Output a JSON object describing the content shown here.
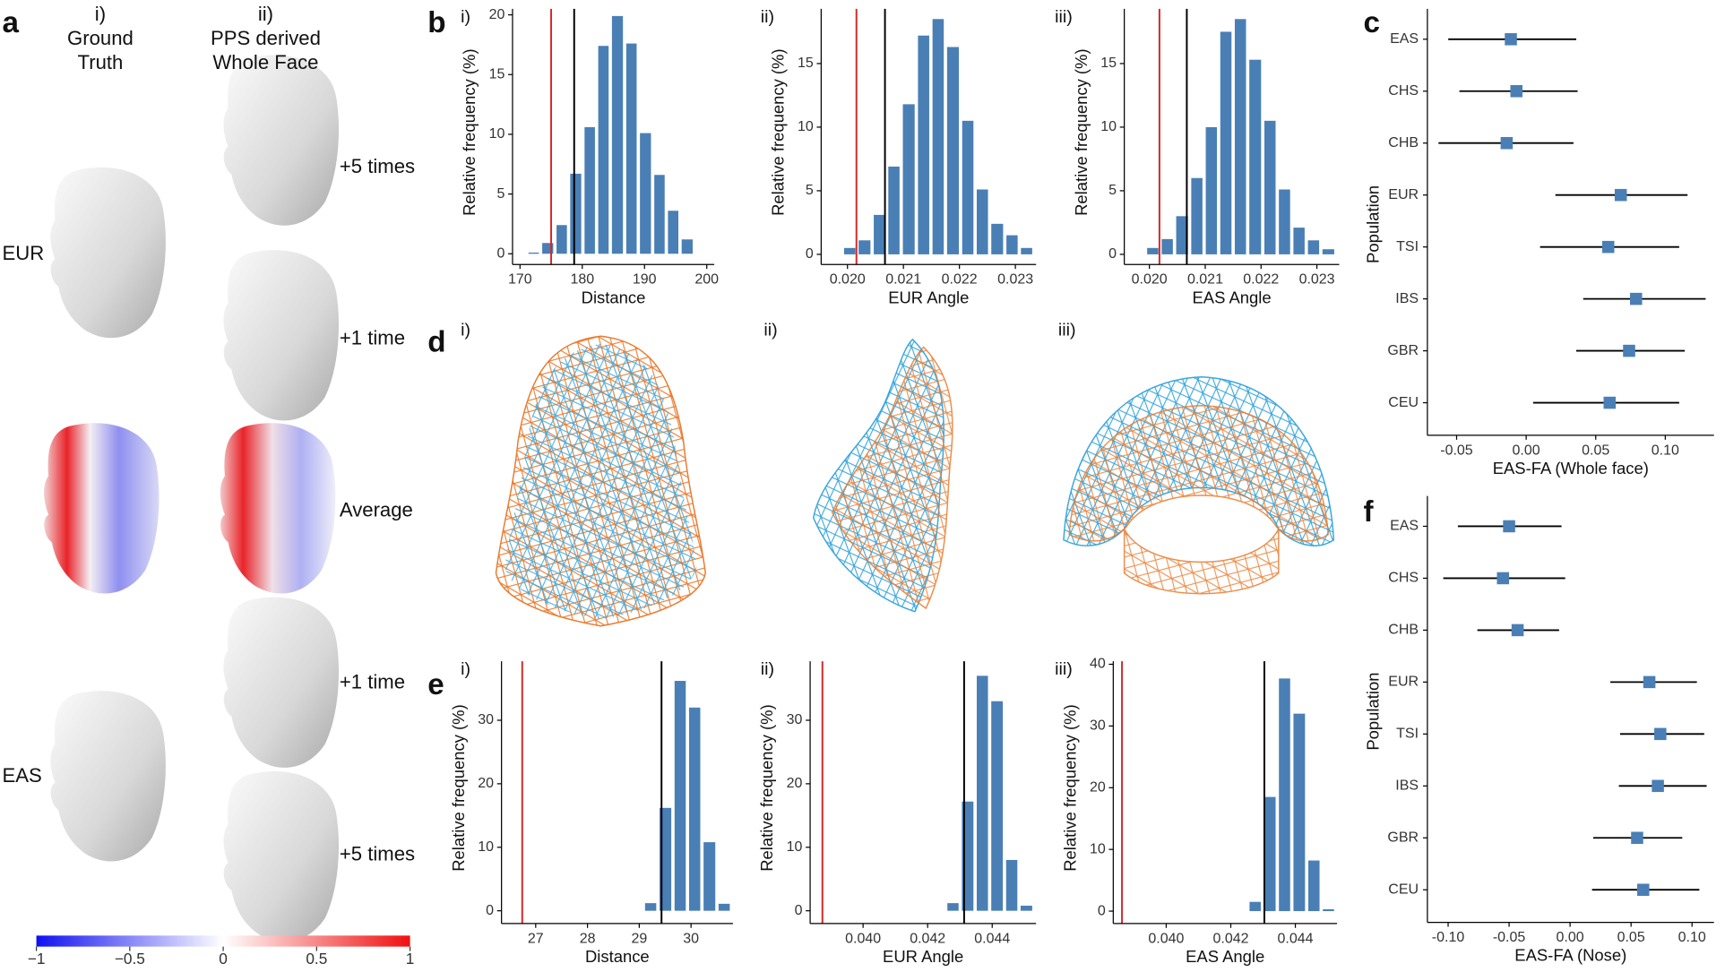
{
  "panel_labels": [
    "a",
    "b",
    "c",
    "d",
    "e",
    "f"
  ],
  "panel_a": {
    "col1": [
      "i)",
      "Ground",
      "Truth"
    ],
    "col2": [
      "ii)",
      "PPS derived",
      "Whole Face"
    ],
    "rows": [
      "EUR",
      "EAS"
    ],
    "steps": [
      "+5 times",
      "+1 time",
      "Average",
      "+1 time",
      "+5 times"
    ],
    "colorbar": {
      "lim": [
        -1,
        1
      ],
      "ticks": [
        {
          "value": -1,
          "label": "−1"
        },
        {
          "value": -0.5,
          "label": "−0.5"
        },
        0,
        0.5,
        1
      ]
    }
  },
  "panel_d": {
    "labels": [
      "i)",
      "ii)",
      "iii)"
    ]
  },
  "chart_data": [
    {
      "type": "histogram",
      "label": "i)",
      "xlabel": "Distance",
      "ylabel": "Relative frequency (%)",
      "bins": [
        171.1,
        173.3,
        175.6,
        177.8,
        180.1,
        182.3,
        184.5,
        186.8,
        189.0,
        191.3,
        193.5,
        195.7,
        198.0
      ],
      "counts": [
        0.1,
        0.9,
        2.4,
        6.7,
        10.6,
        17.4,
        19.9,
        17.6,
        10.1,
        6.6,
        3.6,
        1.2
      ],
      "color": "#4a7fb5",
      "xlim": [
        168.8,
        201.2
      ],
      "ylim": [
        -0.9,
        20.5
      ],
      "xticks": [
        170,
        180,
        190,
        200
      ],
      "yticks": [
        0,
        5,
        10,
        15,
        20
      ],
      "reference_lines": [
        {
          "value": 175.0,
          "color": "#d62728"
        },
        {
          "value": 178.7,
          "color": "#000000"
        }
      ]
    },
    {
      "type": "histogram",
      "label": "ii)",
      "xlabel": "EUR Angle",
      "ylabel": "Relative frequency (%)",
      "bins": [
        0.01991,
        0.02017,
        0.02044,
        0.0207,
        0.02096,
        0.02123,
        0.02149,
        0.02175,
        0.02202,
        0.02228,
        0.02254,
        0.02281,
        0.02307,
        0.02333
      ],
      "counts": [
        0.5,
        1.1,
        3.1,
        6.9,
        11.8,
        17.2,
        18.5,
        16.3,
        10.5,
        5.1,
        2.4,
        1.5,
        0.5
      ],
      "color": "#4a7fb5",
      "xlim": [
        0.01953,
        0.02337
      ],
      "ylim": [
        -0.8,
        19.3
      ],
      "xticks": [
        {
          "value": 0.02,
          "label": "0.020"
        },
        0.021,
        0.022,
        0.023
      ],
      "yticks": [
        0,
        5,
        10,
        15
      ],
      "reference_lines": [
        {
          "value": 0.02016,
          "color": "#d62728"
        },
        {
          "value": 0.02067,
          "color": "#000000"
        }
      ]
    },
    {
      "type": "histogram",
      "label": "iii)",
      "xlabel": "EAS Angle",
      "ylabel": "Relative frequency (%)",
      "bins": [
        0.01993,
        0.02019,
        0.02045,
        0.02072,
        0.02098,
        0.02124,
        0.0215,
        0.02176,
        0.02203,
        0.02229,
        0.02255,
        0.02281,
        0.02307,
        0.02334
      ],
      "counts": [
        0.5,
        1.2,
        3.0,
        6.0,
        10.0,
        17.5,
        18.5,
        15.3,
        10.5,
        5.1,
        2.1,
        1.1,
        0.4
      ],
      "color": "#4a7fb5",
      "xlim": [
        0.01955,
        0.0234
      ],
      "ylim": [
        -0.8,
        19.3
      ],
      "xticks": [
        {
          "value": 0.02,
          "label": "0.020"
        },
        0.021,
        0.022,
        0.023
      ],
      "yticks": [
        0,
        5,
        10,
        15
      ],
      "reference_lines": [
        {
          "value": 0.02018,
          "color": "#d62728"
        },
        {
          "value": 0.02067,
          "color": "#000000"
        }
      ]
    },
    {
      "type": "forest",
      "xlabel": "EAS-FA (Whole face)",
      "ylabel": "Population",
      "categories": [
        "EAS",
        "CHS",
        "CHB",
        "EUR",
        "TSI",
        "IBS",
        "GBR",
        "CEU"
      ],
      "values": [
        -0.011,
        -0.007,
        -0.014,
        0.068,
        0.059,
        0.079,
        0.074,
        0.06
      ],
      "lower": [
        -0.056,
        -0.048,
        -0.063,
        0.021,
        0.01,
        0.041,
        0.036,
        0.005
      ],
      "upper": [
        0.036,
        0.037,
        0.034,
        0.116,
        0.11,
        0.129,
        0.114,
        0.11
      ],
      "color": "#4a7fb5",
      "xlim": [
        -0.071,
        0.135
      ],
      "xticks": [
        -0.05,
        {
          "value": 0,
          "label": "0.00"
        },
        0.05,
        {
          "value": 0.1,
          "label": "0.10"
        }
      ]
    },
    {
      "type": "histogram",
      "label": "i)",
      "xlabel": "Distance",
      "ylabel": "Relative frequency (%)",
      "bins": [
        29.08,
        29.36,
        29.65,
        29.93,
        30.21,
        30.5,
        30.78
      ],
      "counts": [
        1.2,
        16.2,
        36.2,
        32.0,
        10.8,
        1.1
      ],
      "color": "#4a7fb5",
      "xlim": [
        26.34,
        30.81
      ],
      "ylim": [
        -2,
        39.3
      ],
      "xticks": [
        27,
        28,
        29,
        30
      ],
      "yticks": [
        0,
        10,
        20,
        30
      ],
      "reference_lines": [
        {
          "value": 26.74,
          "color": "#d62728"
        },
        {
          "value": 29.43,
          "color": "#000000"
        }
      ]
    },
    {
      "type": "histogram",
      "label": "ii)",
      "xlabel": "EUR Angle",
      "ylabel": "Relative frequency (%)",
      "bins": [
        0.04256,
        0.04301,
        0.04347,
        0.04392,
        0.04438,
        0.04483,
        0.04529
      ],
      "counts": [
        1.2,
        17.2,
        37.0,
        33.0,
        8.0,
        0.8
      ],
      "color": "#4a7fb5",
      "xlim": [
        0.03836,
        0.04536
      ],
      "ylim": [
        -2,
        39.3
      ],
      "xticks": [
        {
          "value": 0.04,
          "label": "0.040"
        },
        0.042,
        0.044
      ],
      "yticks": [
        0,
        10,
        20,
        30
      ],
      "reference_lines": [
        {
          "value": 0.03874,
          "color": "#d62728"
        },
        {
          "value": 0.04313,
          "color": "#000000"
        }
      ]
    },
    {
      "type": "histogram",
      "label": "iii)",
      "xlabel": "EAS Angle",
      "ylabel": "Relative frequency (%)",
      "bins": [
        0.04253,
        0.04298,
        0.04344,
        0.04389,
        0.04435,
        0.0448,
        0.04525
      ],
      "counts": [
        1.5,
        18.5,
        37.7,
        32.0,
        8.2,
        0.3
      ],
      "color": "#4a7fb5",
      "xlim": [
        0.03836,
        0.04529
      ],
      "ylim": [
        -2,
        40.5
      ],
      "xticks": [
        {
          "value": 0.04,
          "label": "0.040"
        },
        0.042,
        0.044
      ],
      "yticks": [
        0,
        10,
        20,
        30,
        40
      ],
      "reference_lines": [
        {
          "value": 0.03863,
          "color": "#d62728"
        },
        {
          "value": 0.04304,
          "color": "#000000"
        }
      ]
    },
    {
      "type": "forest",
      "xlabel": "EAS-FA (Nose)",
      "ylabel": "Population",
      "categories": [
        "EAS",
        "CHS",
        "CHB",
        "EUR",
        "TSI",
        "IBS",
        "GBR",
        "CEU"
      ],
      "values": [
        -0.05,
        -0.055,
        -0.043,
        0.065,
        0.074,
        0.072,
        0.055,
        0.06
      ],
      "lower": [
        -0.092,
        -0.104,
        -0.076,
        0.033,
        0.041,
        0.04,
        0.019,
        0.018
      ],
      "upper": [
        -0.007,
        -0.004,
        -0.009,
        0.104,
        0.11,
        0.112,
        0.092,
        0.106
      ],
      "color": "#4a7fb5",
      "xlim": [
        -0.117,
        0.118
      ],
      "xticks": [
        {
          "value": -0.1,
          "label": "-0.10"
        },
        -0.05,
        {
          "value": 0,
          "label": "0.00"
        },
        0.05,
        {
          "value": 0.1,
          "label": "0.10"
        }
      ]
    }
  ]
}
